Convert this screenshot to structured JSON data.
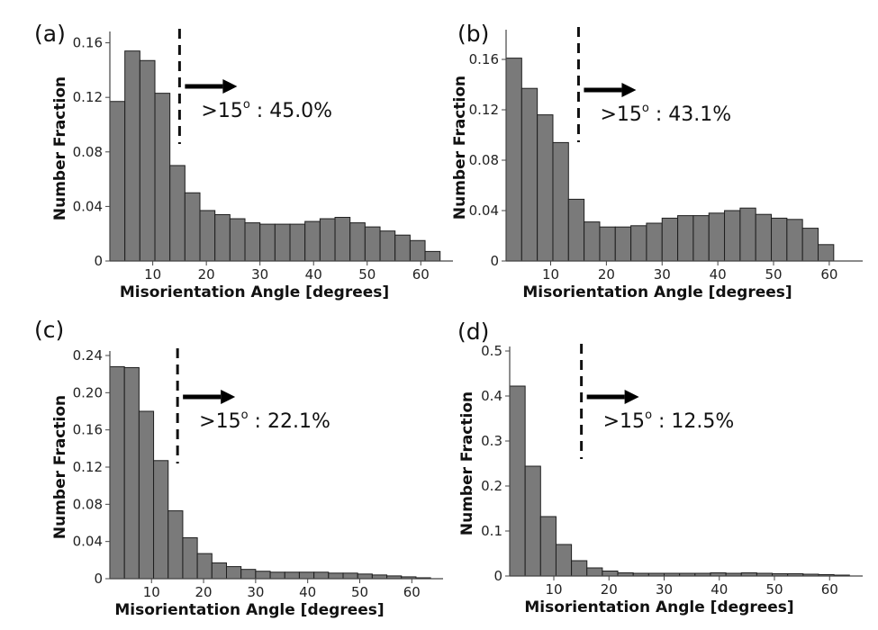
{
  "chart_data": [
    {
      "panel": "(a)",
      "type": "bar",
      "xlabel": "Misorientation Angle [degrees]",
      "ylabel": "Number Fraction",
      "bin_width": 2.8,
      "x_start": 2.0,
      "x": [
        3.4,
        6.2,
        9.0,
        11.8,
        14.6,
        17.4,
        20.2,
        23.0,
        25.8,
        28.6,
        31.4,
        34.2,
        37.0,
        39.8,
        42.6,
        45.4,
        48.2,
        51.0,
        53.8,
        56.6,
        59.4,
        62.2
      ],
      "values": [
        0.117,
        0.154,
        0.147,
        0.123,
        0.07,
        0.05,
        0.037,
        0.034,
        0.031,
        0.028,
        0.027,
        0.027,
        0.027,
        0.029,
        0.031,
        0.032,
        0.028,
        0.025,
        0.022,
        0.019,
        0.015,
        0.007
      ],
      "xlim": [
        2,
        66
      ],
      "ylim": [
        0,
        0.165
      ],
      "xticks": [
        10,
        20,
        30,
        40,
        50,
        60
      ],
      "yticks": [
        "0",
        "0.04",
        "0.08",
        "0.12",
        "0.16"
      ],
      "ytick_values": [
        0,
        0.04,
        0.08,
        0.12,
        0.16
      ],
      "cutoff_angle": 15,
      "annotation": {
        "prefix": ">15",
        "degree": "o",
        "suffix": " : 45.0%"
      }
    },
    {
      "panel": "(b)",
      "type": "bar",
      "xlabel": "Misorientation Angle [degrees]",
      "ylabel": "Number Fraction",
      "bin_width": 2.8,
      "x_start": 2.0,
      "x": [
        3.4,
        6.2,
        9.0,
        11.8,
        14.6,
        17.4,
        20.2,
        23.0,
        25.8,
        28.6,
        31.4,
        34.2,
        37.0,
        39.8,
        42.6,
        45.4,
        48.2,
        51.0,
        53.8,
        56.6,
        59.4,
        62.2
      ],
      "values": [
        0.161,
        0.137,
        0.116,
        0.094,
        0.049,
        0.031,
        0.027,
        0.027,
        0.028,
        0.03,
        0.034,
        0.036,
        0.036,
        0.038,
        0.04,
        0.042,
        0.037,
        0.034,
        0.033,
        0.026,
        0.013,
        0.0
      ],
      "xlim": [
        2,
        66
      ],
      "ylim": [
        0,
        0.18
      ],
      "xticks": [
        10,
        20,
        30,
        40,
        50,
        60
      ],
      "yticks": [
        "0",
        "0.04",
        "0.08",
        "0.12",
        "0.16"
      ],
      "ytick_values": [
        0,
        0.04,
        0.08,
        0.12,
        0.16
      ],
      "cutoff_angle": 15,
      "annotation": {
        "prefix": ">15",
        "degree": "o",
        "suffix": " : 43.1%"
      }
    },
    {
      "panel": "(c)",
      "type": "bar",
      "xlabel": "Misorientation Angle [degrees]",
      "ylabel": "Number Fraction",
      "bin_width": 2.8,
      "x_start": 2.0,
      "x": [
        3.4,
        6.2,
        9.0,
        11.8,
        14.6,
        17.4,
        20.2,
        23.0,
        25.8,
        28.6,
        31.4,
        34.2,
        37.0,
        39.8,
        42.6,
        45.4,
        48.2,
        51.0,
        53.8,
        56.6,
        59.4,
        62.2
      ],
      "values": [
        0.228,
        0.227,
        0.18,
        0.127,
        0.073,
        0.044,
        0.027,
        0.017,
        0.013,
        0.01,
        0.008,
        0.007,
        0.007,
        0.007,
        0.007,
        0.006,
        0.006,
        0.005,
        0.004,
        0.003,
        0.002,
        0.001
      ],
      "xlim": [
        2,
        66
      ],
      "ylim": [
        0,
        0.24
      ],
      "xticks": [
        10,
        20,
        30,
        40,
        50,
        60
      ],
      "yticks": [
        "0",
        "0.04",
        "0.08",
        "0.12",
        "0.16",
        "0.20",
        "0.24"
      ],
      "ytick_values": [
        0,
        0.04,
        0.08,
        0.12,
        0.16,
        0.2,
        0.24
      ],
      "cutoff_angle": 15,
      "annotation": {
        "prefix": ">15",
        "degree": "o",
        "suffix": " : 22.1%"
      }
    },
    {
      "panel": "(d)",
      "type": "bar",
      "xlabel": "Misorientation Angle [degrees]",
      "ylabel": "Number Fraction",
      "bin_width": 2.8,
      "x_start": 2.0,
      "x": [
        3.4,
        6.2,
        9.0,
        11.8,
        14.6,
        17.4,
        20.2,
        23.0,
        25.8,
        28.6,
        31.4,
        34.2,
        37.0,
        39.8,
        42.6,
        45.4,
        48.2,
        51.0,
        53.8,
        56.6,
        59.4,
        62.2
      ],
      "values": [
        0.422,
        0.244,
        0.132,
        0.07,
        0.034,
        0.018,
        0.011,
        0.007,
        0.006,
        0.006,
        0.006,
        0.006,
        0.006,
        0.007,
        0.006,
        0.007,
        0.006,
        0.005,
        0.005,
        0.004,
        0.003,
        0.002
      ],
      "xlim": [
        2,
        66
      ],
      "ylim": [
        0,
        0.5
      ],
      "xticks": [
        10,
        20,
        30,
        40,
        50,
        60
      ],
      "yticks": [
        "0",
        "0.1",
        "0.2",
        "0.3",
        "0.4",
        "0.5"
      ],
      "ytick_values": [
        0,
        0.1,
        0.2,
        0.3,
        0.4,
        0.5
      ],
      "cutoff_angle": 15,
      "annotation": {
        "prefix": ">15",
        "degree": "o",
        "suffix": " : 12.5%"
      }
    }
  ]
}
